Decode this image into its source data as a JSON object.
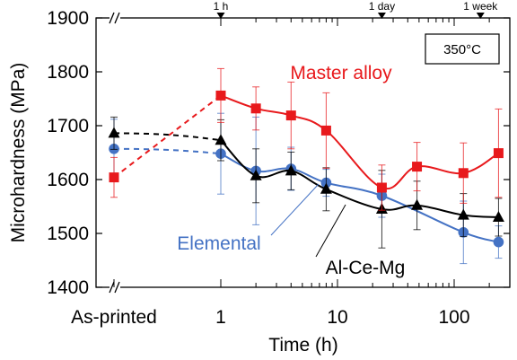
{
  "chart_data": {
    "type": "line",
    "xlabel": "Time (h)",
    "ylabel": "Microhardness (MPa)",
    "x_scale": "log",
    "x_special_label": "As-printed",
    "x_ticks": [
      1,
      10,
      100
    ],
    "x_tick_labels": [
      "1",
      "10",
      "100"
    ],
    "ylim": [
      1400,
      1900
    ],
    "y_ticks": [
      1400,
      1500,
      1600,
      1700,
      1800,
      1900
    ],
    "y_tick_labels": [
      "1400",
      "1500",
      "1600",
      "1700",
      "1800",
      "1900"
    ],
    "top_markers": [
      {
        "label": "1 h",
        "x": 1
      },
      {
        "label": "1 day",
        "x": 24
      },
      {
        "label": "1 week",
        "x": 168
      }
    ],
    "annotation": "350°C",
    "series": [
      {
        "name": "Master alloy",
        "color": "#e8191c",
        "marker": "square",
        "as_printed": {
          "y": 1604,
          "err": 37
        },
        "points": [
          {
            "x": 1,
            "y": 1756,
            "err": 50
          },
          {
            "x": 2,
            "y": 1732,
            "err": 40
          },
          {
            "x": 4,
            "y": 1719,
            "err": 62
          },
          {
            "x": 8,
            "y": 1691,
            "err": 70
          },
          {
            "x": 24,
            "y": 1585,
            "err": 42
          },
          {
            "x": 48,
            "y": 1624,
            "err": 45
          },
          {
            "x": 120,
            "y": 1612,
            "err": 56
          },
          {
            "x": 240,
            "y": 1649,
            "err": 82
          }
        ]
      },
      {
        "name": "Al-Ce-Mg",
        "color": "#000000",
        "marker": "triangle",
        "as_printed": {
          "y": 1686,
          "err": 30
        },
        "points": [
          {
            "x": 1,
            "y": 1673,
            "err": 38
          },
          {
            "x": 2,
            "y": 1607,
            "err": 50
          },
          {
            "x": 4,
            "y": 1616,
            "err": 35
          },
          {
            "x": 8,
            "y": 1582,
            "err": 40
          },
          {
            "x": 24,
            "y": 1545,
            "err": 72
          },
          {
            "x": 48,
            "y": 1552,
            "err": 45
          },
          {
            "x": 120,
            "y": 1534,
            "err": 40
          },
          {
            "x": 240,
            "y": 1530,
            "err": 35
          }
        ]
      },
      {
        "name": "Elemental",
        "color": "#4472c4",
        "marker": "circle",
        "as_printed": {
          "y": 1657,
          "err": 55
        },
        "points": [
          {
            "x": 1,
            "y": 1648,
            "err": 75
          },
          {
            "x": 2,
            "y": 1616,
            "err": 100
          },
          {
            "x": 4,
            "y": 1620,
            "err": 40
          },
          {
            "x": 8,
            "y": 1594,
            "err": 25
          },
          {
            "x": 24,
            "y": 1570,
            "err": 40
          },
          {
            "x": 120,
            "y": 1502,
            "err": 58
          },
          {
            "x": 240,
            "y": 1484,
            "err": 30
          }
        ]
      }
    ]
  }
}
